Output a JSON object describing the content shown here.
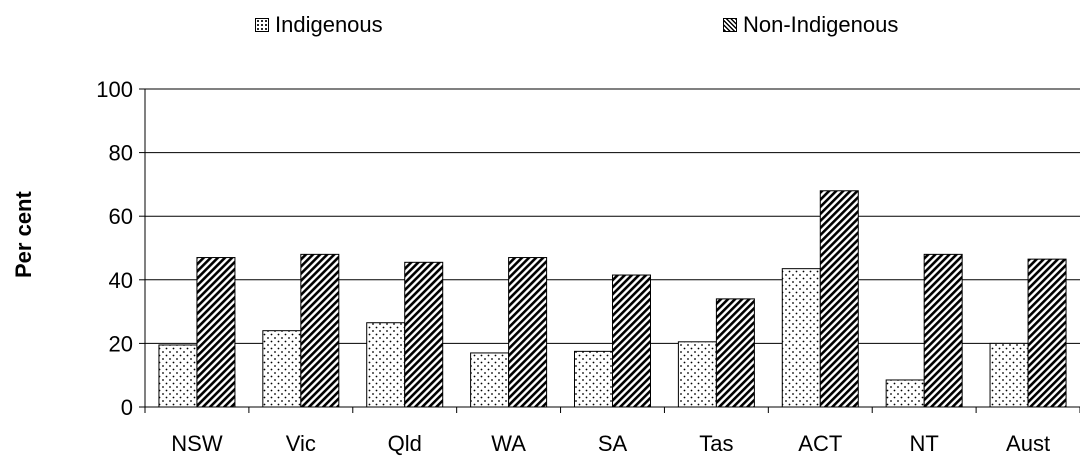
{
  "chart_data": {
    "type": "bar",
    "categories": [
      "NSW",
      "Vic",
      "Qld",
      "WA",
      "SA",
      "Tas",
      "ACT",
      "NT",
      "Aust"
    ],
    "series": [
      {
        "name": "Indigenous",
        "values": [
          19.5,
          24,
          26.5,
          17,
          17.5,
          20.5,
          43.5,
          8.5,
          20
        ],
        "pattern": "dots"
      },
      {
        "name": "Non-Indigenous",
        "values": [
          47,
          48,
          45.5,
          47,
          41.5,
          34,
          68,
          48,
          46.5
        ],
        "pattern": "diagonal-hatch"
      }
    ],
    "ylabel": "Per cent",
    "xlabel": "",
    "ylim": [
      0,
      100
    ],
    "yticks": [
      0,
      20,
      40,
      60,
      80,
      100
    ],
    "grid": true,
    "legend_position": "top"
  }
}
